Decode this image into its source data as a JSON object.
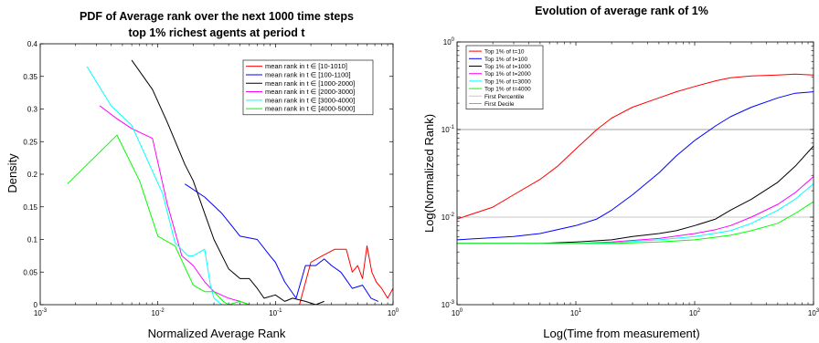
{
  "chart_data": [
    {
      "type": "line",
      "title": "PDF of Average rank over the next 1000 time steps",
      "subtitle": "top 1% richest agents at period t",
      "xlabel": "Normalized Average Rank",
      "ylabel": "Density",
      "xscale": "log",
      "xlim": [
        0.001,
        1
      ],
      "ylim": [
        0,
        0.4
      ],
      "xticks": [
        {
          "value": 0.001,
          "base": "10",
          "exp": "-3"
        },
        {
          "value": 0.01,
          "base": "10",
          "exp": "-2"
        },
        {
          "value": 0.1,
          "base": "10",
          "exp": "-1"
        },
        {
          "value": 1,
          "base": "10",
          "exp": "0"
        }
      ],
      "yticks": [
        {
          "value": 0,
          "label": "0"
        },
        {
          "value": 0.05,
          "label": "0.05"
        },
        {
          "value": 0.1,
          "label": "0.1"
        },
        {
          "value": 0.15,
          "label": "0.15"
        },
        {
          "value": 0.2,
          "label": "0.2"
        },
        {
          "value": 0.25,
          "label": "0.25"
        },
        {
          "value": 0.3,
          "label": "0.3"
        },
        {
          "value": 0.35,
          "label": "0.35"
        },
        {
          "value": 0.4,
          "label": "0.4"
        }
      ],
      "grid": false,
      "legend_position": "top-right",
      "series": [
        {
          "name": "mean rank in t ∈ [10-1010]",
          "color": "#ff0000",
          "x": [
            0.16,
            0.2,
            0.25,
            0.32,
            0.36,
            0.4,
            0.45,
            0.5,
            0.55,
            0.6,
            0.66,
            0.72,
            0.8,
            0.9,
            1.0
          ],
          "y": [
            0.0,
            0.065,
            0.075,
            0.085,
            0.085,
            0.085,
            0.05,
            0.06,
            0.04,
            0.09,
            0.05,
            0.035,
            0.025,
            0.01,
            0.025
          ]
        },
        {
          "name": "mean rank in t ∈ [100-1100]",
          "color": "#0000ff",
          "x": [
            0.017,
            0.025,
            0.035,
            0.05,
            0.07,
            0.09,
            0.1,
            0.12,
            0.15,
            0.18,
            0.22,
            0.26,
            0.3,
            0.36,
            0.45,
            0.55,
            0.65,
            0.75
          ],
          "y": [
            0.185,
            0.165,
            0.14,
            0.105,
            0.1,
            0.075,
            0.065,
            0.035,
            0.01,
            0.06,
            0.06,
            0.07,
            0.06,
            0.05,
            0.025,
            0.03,
            0.01,
            0.005
          ]
        },
        {
          "name": "mean rank in t ∈ [1000-2000]",
          "color": "#000000",
          "x": [
            0.006,
            0.009,
            0.012,
            0.017,
            0.02,
            0.025,
            0.03,
            0.04,
            0.05,
            0.06,
            0.07,
            0.08,
            0.1,
            0.12,
            0.14,
            0.18,
            0.22,
            0.26
          ],
          "y": [
            0.375,
            0.33,
            0.28,
            0.215,
            0.19,
            0.14,
            0.1,
            0.055,
            0.04,
            0.04,
            0.025,
            0.01,
            0.015,
            0.005,
            0.01,
            0.005,
            0.0,
            0.005
          ]
        },
        {
          "name": "mean rank in t ∈ [2000-3000]",
          "color": "#ff00ff",
          "x": [
            0.0032,
            0.0045,
            0.006,
            0.009,
            0.012,
            0.016,
            0.02,
            0.025,
            0.03,
            0.04,
            0.05,
            0.06
          ],
          "y": [
            0.305,
            0.285,
            0.27,
            0.255,
            0.155,
            0.075,
            0.06,
            0.035,
            0.02,
            0.01,
            0.005,
            0.0
          ]
        },
        {
          "name": "mean rank in t ∈ [3000-4000]",
          "color": "#00ffff",
          "x": [
            0.0025,
            0.004,
            0.006,
            0.008,
            0.011,
            0.014,
            0.018,
            0.02,
            0.025,
            0.028,
            0.03,
            0.035
          ],
          "y": [
            0.365,
            0.305,
            0.275,
            0.225,
            0.17,
            0.095,
            0.075,
            0.075,
            0.085,
            0.03,
            0.01,
            0.0
          ]
        },
        {
          "name": "mean rank in t ∈ [4000-5000]",
          "color": "#00ff00",
          "x": [
            0.0017,
            0.0045,
            0.007,
            0.01,
            0.014,
            0.02,
            0.025,
            0.03,
            0.036,
            0.04,
            0.05,
            0.06
          ],
          "y": [
            0.185,
            0.26,
            0.19,
            0.105,
            0.09,
            0.03,
            0.02,
            0.02,
            0.005,
            0.0,
            0.005,
            0.0
          ]
        }
      ]
    },
    {
      "type": "line",
      "title": "Evolution of average rank of 1%",
      "xlabel": "Log(Time from measurement)",
      "ylabel": "Log(Normalized Rank)",
      "xscale": "log",
      "yscale": "log",
      "xlim": [
        1,
        1000
      ],
      "ylim": [
        0.001,
        1
      ],
      "xticks": [
        {
          "value": 1,
          "base": "10",
          "exp": "0"
        },
        {
          "value": 10,
          "base": "10",
          "exp": "1"
        },
        {
          "value": 100,
          "base": "10",
          "exp": "2"
        },
        {
          "value": 1000,
          "base": "10",
          "exp": "3"
        }
      ],
      "yticks": [
        {
          "value": 0.001,
          "base": "10",
          "exp": "-3"
        },
        {
          "value": 0.01,
          "base": "10",
          "exp": "-2"
        },
        {
          "value": 0.1,
          "base": "10",
          "exp": "-1"
        },
        {
          "value": 1,
          "base": "10",
          "exp": "0"
        }
      ],
      "grid": false,
      "legend_position": "top-left",
      "series": [
        {
          "name": "Top 1% of t=10",
          "color": "#ff0000",
          "x": [
            1,
            2,
            3,
            5,
            7,
            10,
            15,
            20,
            30,
            50,
            70,
            100,
            150,
            200,
            300,
            500,
            700,
            1000
          ],
          "y": [
            0.0095,
            0.013,
            0.018,
            0.027,
            0.038,
            0.06,
            0.1,
            0.135,
            0.18,
            0.23,
            0.27,
            0.31,
            0.36,
            0.39,
            0.41,
            0.42,
            0.43,
            0.42
          ]
        },
        {
          "name": "Top 1% of t=100",
          "color": "#0000ff",
          "x": [
            1,
            3,
            5,
            7,
            10,
            15,
            20,
            30,
            50,
            70,
            100,
            150,
            200,
            300,
            500,
            700,
            1000
          ],
          "y": [
            0.0055,
            0.006,
            0.0065,
            0.0072,
            0.008,
            0.0095,
            0.012,
            0.018,
            0.032,
            0.05,
            0.075,
            0.11,
            0.14,
            0.18,
            0.23,
            0.26,
            0.27
          ]
        },
        {
          "name": "Top 1% of t=1000",
          "color": "#000000",
          "x": [
            1,
            5,
            10,
            20,
            30,
            50,
            70,
            100,
            150,
            200,
            300,
            500,
            700,
            1000
          ],
          "y": [
            0.005,
            0.005,
            0.0052,
            0.0055,
            0.006,
            0.0065,
            0.007,
            0.008,
            0.0095,
            0.012,
            0.016,
            0.025,
            0.038,
            0.065
          ]
        },
        {
          "name": "Top 1% of t=2000",
          "color": "#ff00ff",
          "x": [
            1,
            5,
            10,
            20,
            50,
            100,
            150,
            200,
            300,
            500,
            700,
            1000
          ],
          "y": [
            0.005,
            0.005,
            0.005,
            0.0052,
            0.0057,
            0.0065,
            0.0072,
            0.008,
            0.01,
            0.014,
            0.019,
            0.029
          ]
        },
        {
          "name": "Top 1% of t=3000",
          "color": "#00ffff",
          "x": [
            1,
            5,
            10,
            20,
            50,
            100,
            200,
            300,
            500,
            700,
            1000
          ],
          "y": [
            0.005,
            0.005,
            0.005,
            0.0051,
            0.0055,
            0.006,
            0.007,
            0.0085,
            0.012,
            0.016,
            0.024
          ]
        },
        {
          "name": "Top 1% of t=4000",
          "color": "#00ff00",
          "x": [
            1,
            5,
            10,
            20,
            50,
            100,
            200,
            300,
            500,
            700,
            1000
          ],
          "y": [
            0.005,
            0.005,
            0.005,
            0.005,
            0.0052,
            0.0055,
            0.0062,
            0.007,
            0.0085,
            0.011,
            0.015
          ]
        }
      ],
      "reference_lines": [
        {
          "name": "First Percentile",
          "color": "#c8c8c8",
          "y": 0.01
        },
        {
          "name": "First Decile",
          "color": "#a0a0a0",
          "y": 0.1
        }
      ]
    }
  ]
}
